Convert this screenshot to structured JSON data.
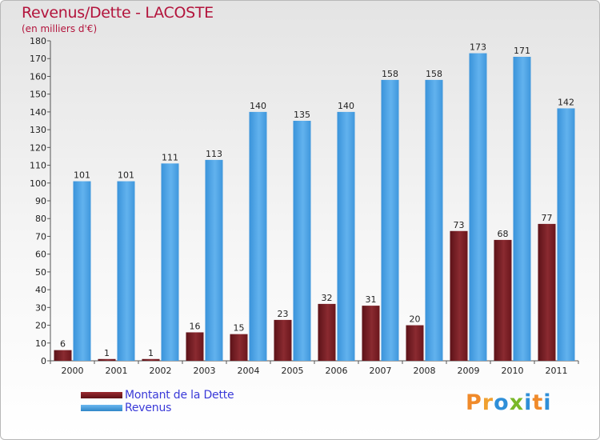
{
  "chart_data": {
    "type": "bar",
    "title": "Revenus/Dette - LACOSTE",
    "subtitle": "(en milliers d'€)",
    "xlabel": "",
    "ylabel": "",
    "ylim": [
      0,
      180
    ],
    "yticks": [
      0,
      10,
      20,
      30,
      40,
      50,
      60,
      70,
      80,
      90,
      100,
      110,
      120,
      130,
      140,
      150,
      160,
      170,
      180
    ],
    "grid": false,
    "legend_position": "bottom-left",
    "categories": [
      "2000",
      "2001",
      "2002",
      "2003",
      "2004",
      "2005",
      "2006",
      "2007",
      "2008",
      "2009",
      "2010",
      "2011"
    ],
    "series": [
      {
        "name": "Montant de la Dette",
        "color": "#7a1c22",
        "values": [
          6,
          1,
          1,
          16,
          15,
          23,
          32,
          31,
          20,
          73,
          68,
          77
        ]
      },
      {
        "name": "Revenus",
        "color": "#4aa3e8",
        "values": [
          101,
          101,
          111,
          113,
          140,
          135,
          140,
          158,
          158,
          173,
          171,
          142
        ]
      }
    ]
  },
  "logo": {
    "text": "Proxiti",
    "letters": [
      {
        "ch": "P",
        "color": "#f08a2a"
      },
      {
        "ch": "r",
        "color": "#f0a030"
      },
      {
        "ch": "o",
        "color": "#2f8fd8"
      },
      {
        "ch": "x",
        "color": "#7ab829"
      },
      {
        "ch": "i",
        "color": "#2f8fd8"
      },
      {
        "ch": "t",
        "color": "#f08a2a"
      },
      {
        "ch": "i",
        "color": "#2f8fd8"
      }
    ]
  }
}
